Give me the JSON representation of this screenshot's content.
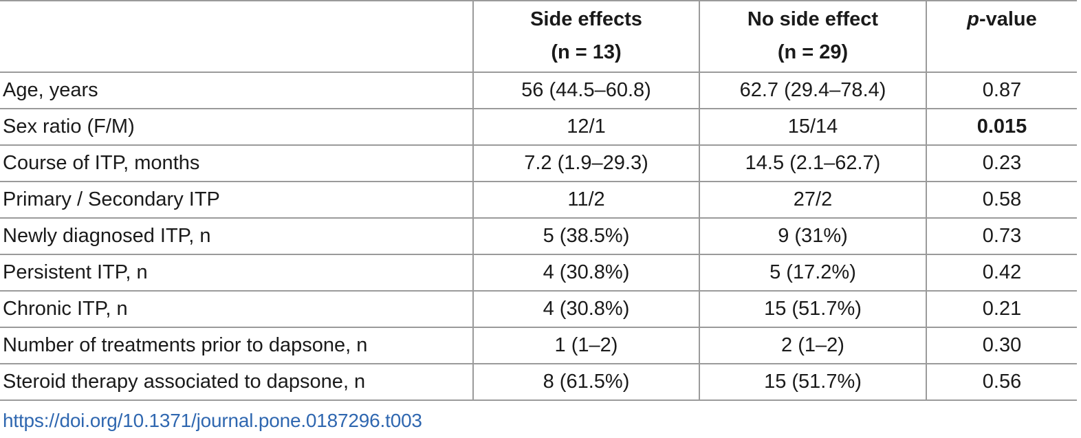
{
  "table": {
    "headers": {
      "col1_line1": "Side effects",
      "col1_line2": "(n = 13)",
      "col2_line1": "No side effect",
      "col2_line2": "(n = 29)",
      "col3_italic": "p",
      "col3_rest": "-value"
    },
    "rows": [
      {
        "label": "Age, years",
        "side": "56 (44.5–60.8)",
        "noside": "62.7 (29.4–78.4)",
        "p": "0.87"
      },
      {
        "label": "Sex ratio (F/M)",
        "side": "12/1",
        "noside": "15/14",
        "p": "0.015"
      },
      {
        "label": "Course of ITP, months",
        "side": "7.2 (1.9–29.3)",
        "noside": "14.5 (2.1–62.7)",
        "p": "0.23"
      },
      {
        "label": "Primary / Secondary ITP",
        "side": "11/2",
        "noside": "27/2",
        "p": "0.58"
      },
      {
        "label": "Newly diagnosed ITP, n",
        "side": "5 (38.5%)",
        "noside": "9 (31%)",
        "p": "0.73"
      },
      {
        "label": "Persistent ITP, n",
        "side": "4 (30.8%)",
        "noside": "5 (17.2%)",
        "p": "0.42"
      },
      {
        "label": "Chronic ITP, n",
        "side": "4 (30.8%)",
        "noside": "15 (51.7%)",
        "p": "0.21"
      },
      {
        "label": "Number of treatments prior to dapsone, n",
        "side": "1 (1–2)",
        "noside": "2 (1–2)",
        "p": "0.30"
      },
      {
        "label": "Steroid therapy associated to dapsone, n",
        "side": "8 (61.5%)",
        "noside": "15 (51.7%)",
        "p": "0.56"
      }
    ]
  },
  "doi_link": "https://doi.org/10.1371/journal.pone.0187296.t003"
}
